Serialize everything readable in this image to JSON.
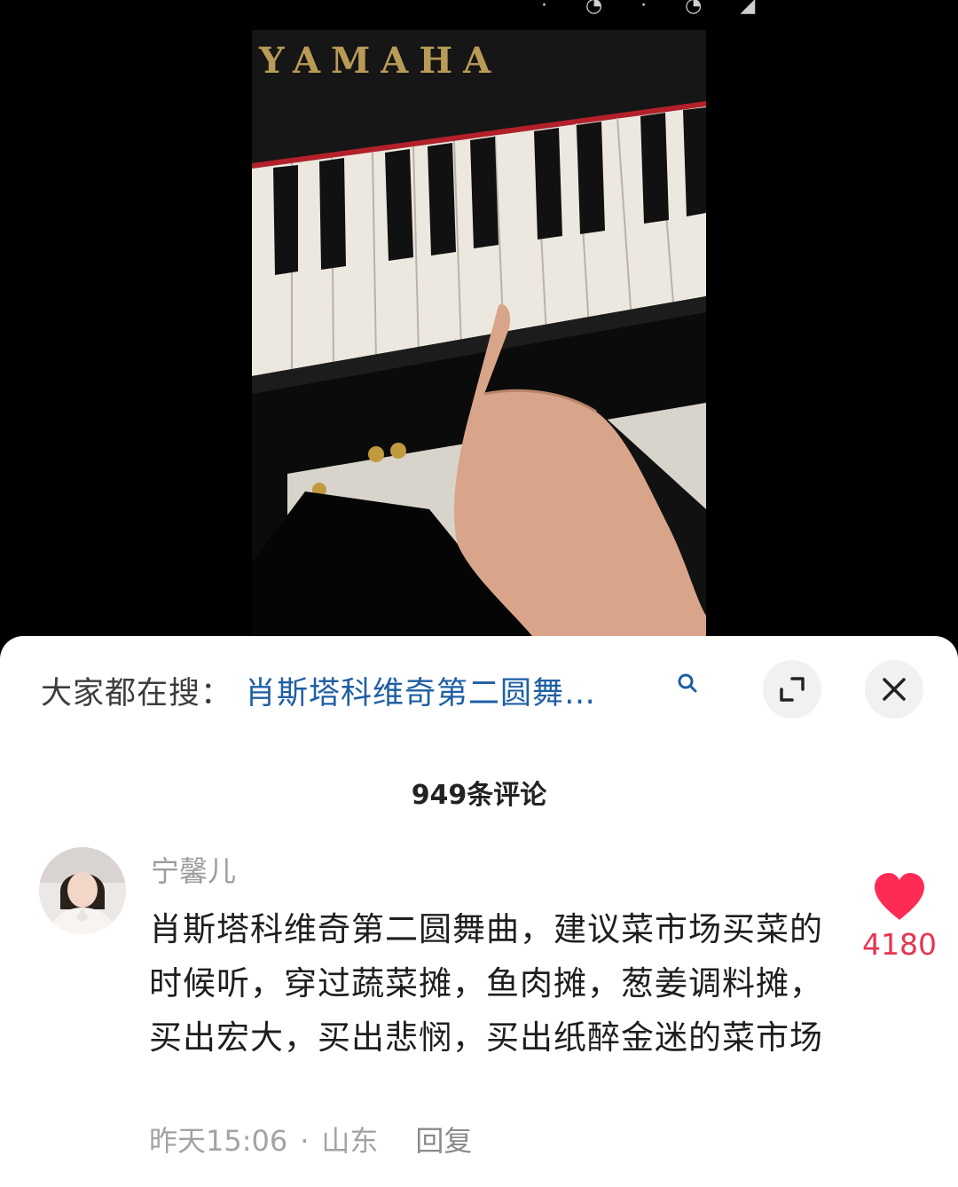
{
  "status_bar": {
    "glyphs": "·  ◔  ·  ◔   ◢"
  },
  "video": {
    "brand_text": "YAMAHA"
  },
  "search_bar": {
    "prefix": "大家都在搜：",
    "query": "肖斯塔科维奇第二圆舞…",
    "icon": "search-icon"
  },
  "actions": {
    "expand_icon": "expand-icon",
    "close_icon": "close-icon"
  },
  "comments_header": {
    "count_label": "949条评论"
  },
  "comment": {
    "username": "宁馨儿",
    "text": "肖斯塔科维奇第二圆舞曲，建议菜市场买菜的时候听，穿过蔬菜摊，鱼肉摊，葱姜调料摊，买出宏大，买出悲悯，买出纸醉金迷的菜市场",
    "time": "昨天15:06",
    "separator": "·",
    "location": "山东",
    "reply_label": "回复",
    "likes": "4180",
    "like_color": "#fe2c55"
  }
}
